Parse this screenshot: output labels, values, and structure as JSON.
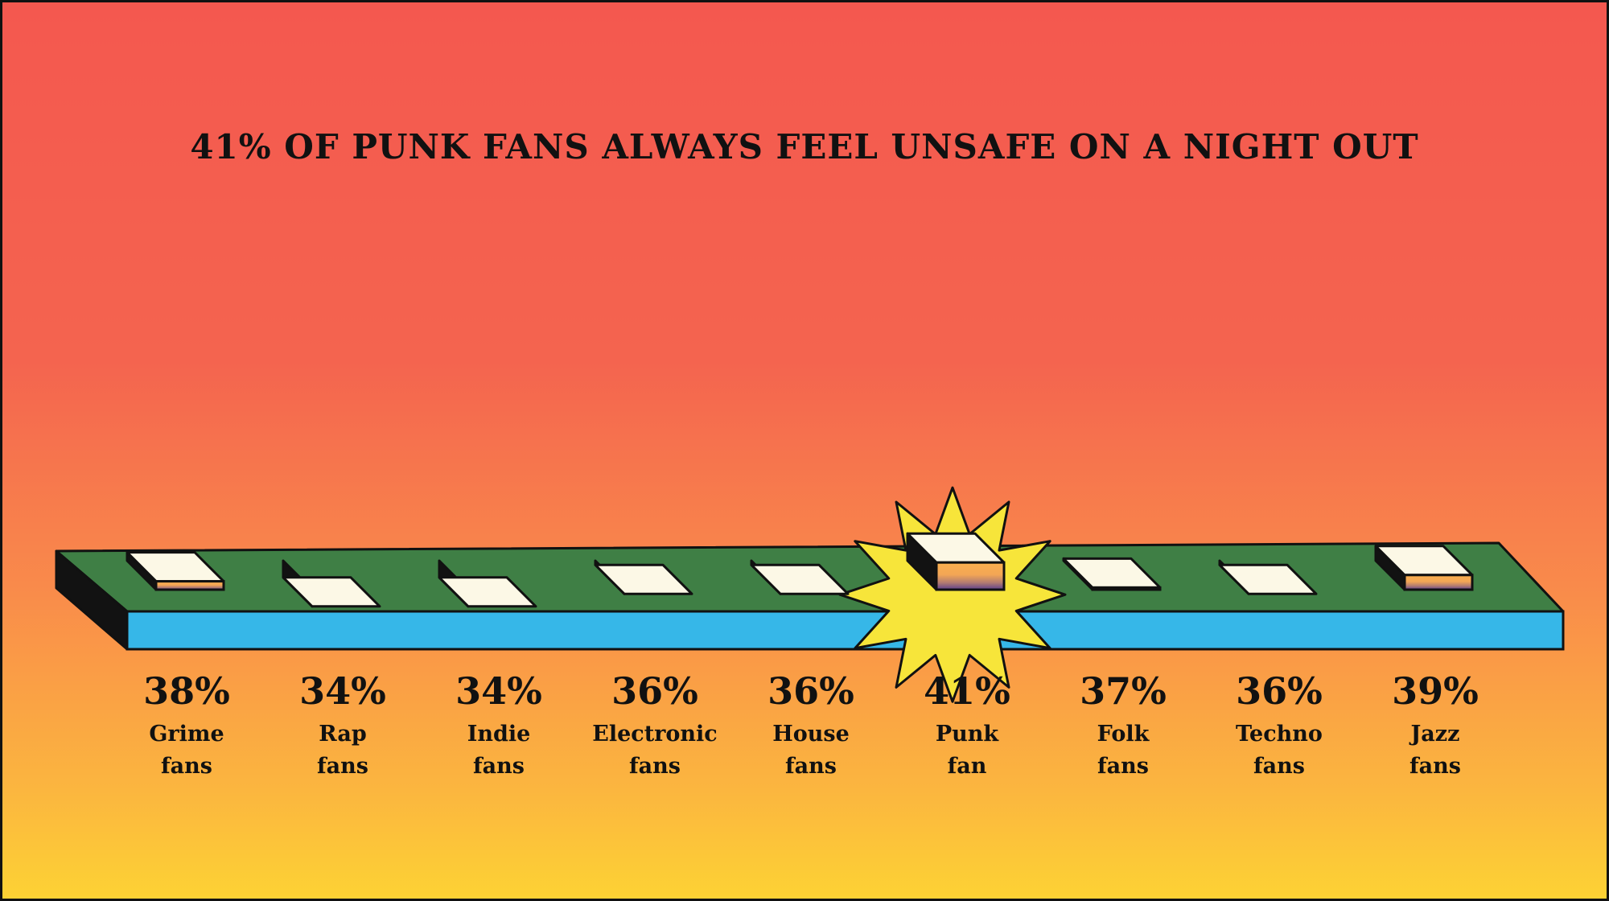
{
  "chart_data": {
    "type": "bar",
    "title": "41% OF PUNK FANS ALWAYS FEEL UNSAFE ON A NIGHT OUT",
    "categories": [
      "Grime fans",
      "Rap fans",
      "Indie fans",
      "Electronic fans",
      "House fans",
      "Punk fan",
      "Folk fans",
      "Techno fans",
      "Jazz fans"
    ],
    "values": [
      38,
      34,
      34,
      36,
      36,
      41,
      37,
      36,
      39
    ],
    "value_labels": [
      "38%",
      "34%",
      "34%",
      "36%",
      "36%",
      "41%",
      "37%",
      "36%",
      "39%"
    ],
    "category_lines": [
      [
        "Grime",
        "fans"
      ],
      [
        "Rap",
        "fans"
      ],
      [
        "Indie",
        "fans"
      ],
      [
        "Electronic",
        "fans"
      ],
      [
        "House",
        "fans"
      ],
      [
        "Punk",
        "fan"
      ],
      [
        "Folk",
        "fans"
      ],
      [
        "Techno",
        "fans"
      ],
      [
        "Jazz",
        "fans"
      ]
    ],
    "highlight_index": 5,
    "grid": false,
    "colors": {
      "bar_top": "#fcf8e6",
      "bar_side": "#121212",
      "bar_front_top": "#fbb04e",
      "bar_front_bottom": "#5b3e8f",
      "platform_top": "#3f7f45",
      "platform_front": "#36b7e8",
      "burst": "#f7e53a"
    }
  }
}
